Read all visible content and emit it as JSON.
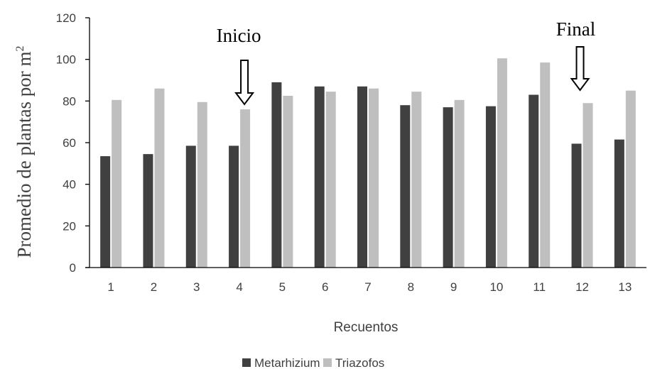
{
  "chart_data": {
    "type": "bar",
    "categories": [
      "1",
      "2",
      "3",
      "4",
      "5",
      "6",
      "7",
      "8",
      "9",
      "10",
      "11",
      "12",
      "13"
    ],
    "series": [
      {
        "name": "Metarhizium",
        "color": "#404040",
        "values": [
          53.5,
          54.5,
          58.5,
          58.5,
          89,
          87,
          87,
          78,
          77,
          77.5,
          83,
          59.5,
          61.5
        ]
      },
      {
        "name": "Triazofos",
        "color": "#bfbfbf",
        "values": [
          80.5,
          86,
          79.5,
          76,
          82.5,
          84.5,
          86,
          84.5,
          80.5,
          100.5,
          98.5,
          79,
          85
        ]
      }
    ],
    "xlabel": "Recuentos",
    "ylabel": "Promedio de plantas  por m",
    "ylabel_superscript": "2",
    "ylim": [
      0,
      120
    ],
    "yticks": [
      "0",
      "20",
      "40",
      "60",
      "80",
      "100",
      "120"
    ],
    "grid": false,
    "legend_position": "bottom",
    "annotations": [
      {
        "text": "Inicio",
        "category": "4",
        "marker": "down-arrow"
      },
      {
        "text": "Final",
        "category": "12",
        "marker": "down-arrow"
      }
    ]
  }
}
